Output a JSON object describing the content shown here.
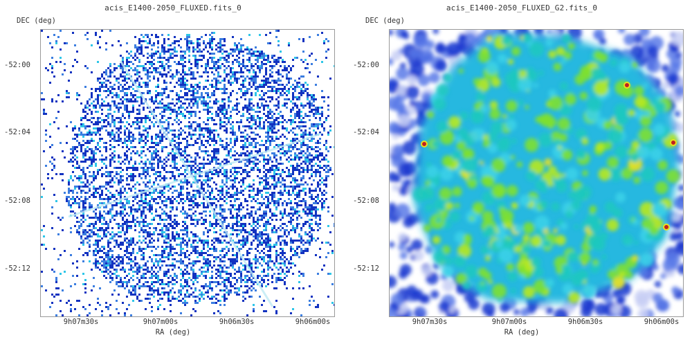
{
  "panels": [
    {
      "title": "acis_E1400-2050_FLUXED.fits_0",
      "ylabel": "DEC (deg)",
      "xlabel": "RA (deg)",
      "yticks": [
        "-52:00",
        "-52:04",
        "-52:08",
        "-52:12"
      ],
      "xticks": [
        "9h07m30s",
        "9h07m00s",
        "9h06m30s",
        "9h06m00s"
      ],
      "render": "raw-counts"
    },
    {
      "title": "acis_E1400-2050_FLUXED_G2.fits_0",
      "ylabel": "DEC (deg)",
      "xlabel": "RA (deg)",
      "yticks": [
        "-52:00",
        "-52:04",
        "-52:08",
        "-52:12"
      ],
      "xticks": [
        "9h07m30s",
        "9h07m00s",
        "9h06m30s",
        "9h06m00s"
      ],
      "render": "smoothed"
    }
  ],
  "colors": {
    "background": "#ffffff",
    "axis": "#999999",
    "low": "#1030c8",
    "mid": "#2ec6e8",
    "high": "#7ee030",
    "peak": "#e8e020"
  }
}
